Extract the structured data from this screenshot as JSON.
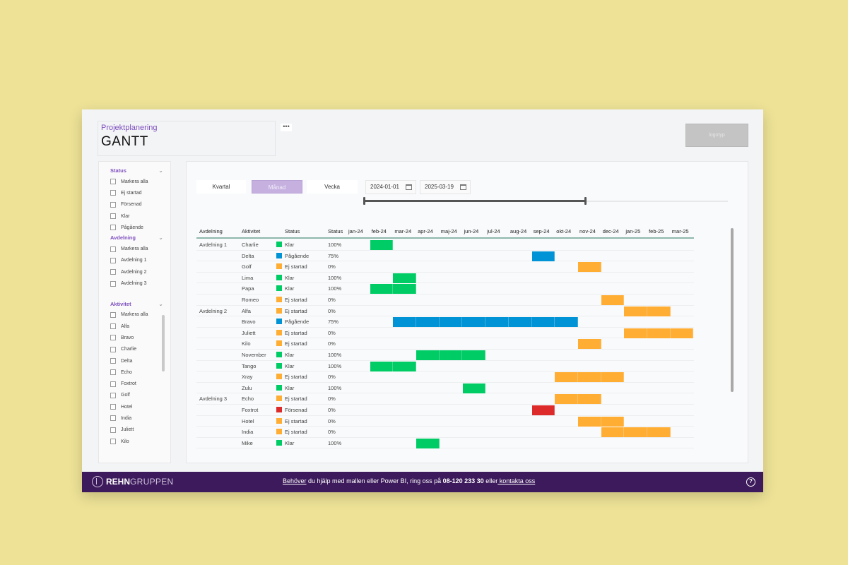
{
  "header": {
    "subtitle": "Projektplanering",
    "title": "GANTT",
    "more_options": "•••",
    "logo_placeholder": "logotyp"
  },
  "colors": {
    "klar": "#00cc66",
    "pagaende": "#0093d5",
    "ej_startad": "#ffad33",
    "forsenad": "#dd2a2a",
    "accent": "#7e4fbe",
    "footer_bg": "#3c1a5b"
  },
  "filters": {
    "status": {
      "label": "Status",
      "items": [
        "Markera alla",
        "Ej startad",
        "Försenad",
        "Klar",
        "Pågående"
      ]
    },
    "avdelning": {
      "label": "Avdelning",
      "items": [
        "Markera alla",
        "Avdelning 1",
        "Avdelning 2",
        "Avdelning 3"
      ]
    },
    "aktivitet": {
      "label": "Aktivitet",
      "items": [
        "Markera alla",
        "Alfa",
        "Bravo",
        "Charlie",
        "Delta",
        "Echo",
        "Foxtrot",
        "Golf",
        "Hotel",
        "India",
        "Juliett",
        "Kilo"
      ]
    }
  },
  "toolbar": {
    "granularity": [
      "Kvartal",
      "Månad",
      "Vecka"
    ],
    "active_granularity": "Månad",
    "start_date": "2024-01-01",
    "end_date": "2025-03-19"
  },
  "table": {
    "columns": [
      "Avdelning",
      "Aktivitet",
      "Status",
      "Status"
    ],
    "months": [
      "jan-24",
      "feb-24",
      "mar-24",
      "apr-24",
      "maj-24",
      "jun-24",
      "jul-24",
      "aug-24",
      "sep-24",
      "okt-24",
      "nov-24",
      "dec-24",
      "jan-25",
      "feb-25",
      "mar-25"
    ],
    "rows": [
      {
        "avdelning": "Avdelning 1",
        "aktivitet": "Charlie",
        "status": "Klar",
        "key": "klar",
        "progress": "100%",
        "start": 1,
        "end": 1
      },
      {
        "avdelning": "",
        "aktivitet": "Delta",
        "status": "Pågående",
        "key": "pagaende",
        "progress": "75%",
        "start": 8,
        "end": 8
      },
      {
        "avdelning": "",
        "aktivitet": "Golf",
        "status": "Ej startad",
        "key": "ej_startad",
        "progress": "0%",
        "start": 10,
        "end": 10
      },
      {
        "avdelning": "",
        "aktivitet": "Lima",
        "status": "Klar",
        "key": "klar",
        "progress": "100%",
        "start": 2,
        "end": 2
      },
      {
        "avdelning": "",
        "aktivitet": "Papa",
        "status": "Klar",
        "key": "klar",
        "progress": "100%",
        "start": 1,
        "end": 2
      },
      {
        "avdelning": "",
        "aktivitet": "Romeo",
        "status": "Ej startad",
        "key": "ej_startad",
        "progress": "0%",
        "start": 11,
        "end": 11
      },
      {
        "avdelning": "Avdelning 2",
        "aktivitet": "Alfa",
        "status": "Ej startad",
        "key": "ej_startad",
        "progress": "0%",
        "start": 12,
        "end": 13
      },
      {
        "avdelning": "",
        "aktivitet": "Bravo",
        "status": "Pågående",
        "key": "pagaende",
        "progress": "75%",
        "start": 2,
        "end": 9
      },
      {
        "avdelning": "",
        "aktivitet": "Juliett",
        "status": "Ej startad",
        "key": "ej_startad",
        "progress": "0%",
        "start": 12,
        "end": 14
      },
      {
        "avdelning": "",
        "aktivitet": "Kilo",
        "status": "Ej startad",
        "key": "ej_startad",
        "progress": "0%",
        "start": 10,
        "end": 10
      },
      {
        "avdelning": "",
        "aktivitet": "November",
        "status": "Klar",
        "key": "klar",
        "progress": "100%",
        "start": 3,
        "end": 5
      },
      {
        "avdelning": "",
        "aktivitet": "Tango",
        "status": "Klar",
        "key": "klar",
        "progress": "100%",
        "start": 1,
        "end": 2
      },
      {
        "avdelning": "",
        "aktivitet": "Xray",
        "status": "Ej startad",
        "key": "ej_startad",
        "progress": "0%",
        "start": 9,
        "end": 11
      },
      {
        "avdelning": "",
        "aktivitet": "Zulu",
        "status": "Klar",
        "key": "klar",
        "progress": "100%",
        "start": 5,
        "end": 5
      },
      {
        "avdelning": "Avdelning 3",
        "aktivitet": "Echo",
        "status": "Ej startad",
        "key": "ej_startad",
        "progress": "0%",
        "start": 9,
        "end": 10
      },
      {
        "avdelning": "",
        "aktivitet": "Foxtrot",
        "status": "Försenad",
        "key": "forsenad",
        "progress": "0%",
        "start": 8,
        "end": 8
      },
      {
        "avdelning": "",
        "aktivitet": "Hotel",
        "status": "Ej startad",
        "key": "ej_startad",
        "progress": "0%",
        "start": 10,
        "end": 11
      },
      {
        "avdelning": "",
        "aktivitet": "India",
        "status": "Ej startad",
        "key": "ej_startad",
        "progress": "0%",
        "start": 11,
        "end": 13
      },
      {
        "avdelning": "",
        "aktivitet": "Mike",
        "status": "Klar",
        "key": "klar",
        "progress": "100%",
        "start": 3,
        "end": 3
      }
    ]
  },
  "footer": {
    "brand_bold": "REHN",
    "brand_light": "GRUPPEN",
    "link1": "Behöver",
    "text1": " du hjälp med mallen eller Power BI, ring oss på ",
    "phone": "08-120 233 30",
    "text2": " eller",
    "link2": " kontakta oss",
    "help": "?"
  }
}
